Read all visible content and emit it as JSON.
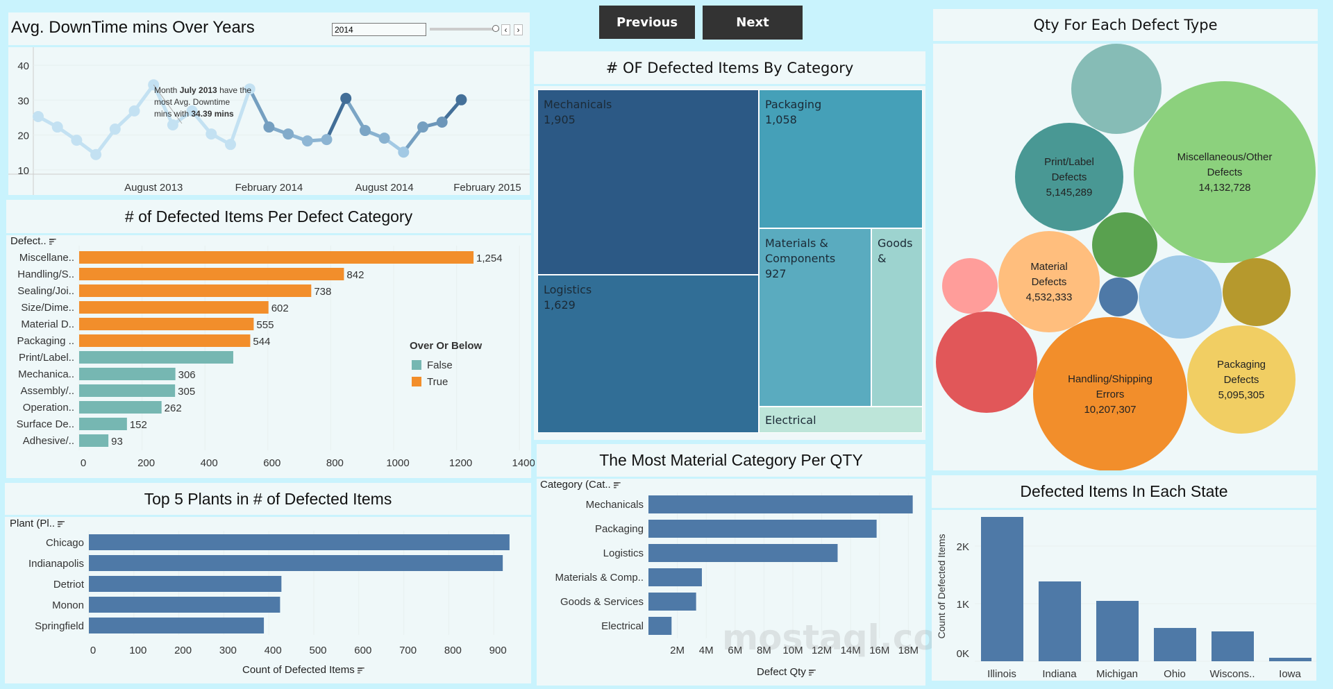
{
  "nav": {
    "previous_label": "Previous",
    "next_label": "Next"
  },
  "downtime": {
    "title": "Avg. DownTime mins Over Years",
    "filter_value": "2014",
    "y_ticks": [
      40,
      30,
      20,
      10
    ],
    "x_ticks": [
      "August 2013",
      "February 2014",
      "August 2014",
      "February 2015"
    ],
    "annotation": {
      "pre": "Month ",
      "month": "July 2013",
      "mid": " have the most Avg. Downtime mins with ",
      "value": "34.39 mins"
    },
    "selected_year": "2014",
    "chart_data": {
      "type": "line",
      "x": [
        "2013-01",
        "2013-02",
        "2013-03",
        "2013-04",
        "2013-05",
        "2013-06",
        "2013-07",
        "2013-08",
        "2013-09",
        "2013-10",
        "2013-11",
        "2013-12",
        "2014-01",
        "2014-02",
        "2014-03",
        "2014-04",
        "2014-05",
        "2014-06",
        "2014-07",
        "2014-08",
        "2014-09",
        "2014-10",
        "2014-11"
      ],
      "values": [
        25.3,
        22.3,
        18.5,
        14.4,
        21.7,
        26.9,
        34.39,
        22.9,
        26.9,
        20.3,
        17.3,
        33.2,
        22.3,
        20.3,
        18.3,
        18.7,
        30.5,
        21.3,
        19.1,
        15.1,
        22.3,
        23.7,
        30.1
      ],
      "ylim": [
        10,
        40
      ]
    }
  },
  "defect_category": {
    "title": "# of Defected Items Per Defect Category",
    "header": "Defect..",
    "legend_title": "Over Or Below",
    "legend": [
      {
        "label": "False",
        "color": "#76b7b2"
      },
      {
        "label": "True",
        "color": "#f28e2b"
      }
    ],
    "x_ticks": [
      0,
      200,
      400,
      600,
      800,
      1000,
      1200,
      1400
    ],
    "chart_data": {
      "type": "bar",
      "categories": [
        "Miscellane..",
        "Handling/S..",
        "Sealing/Joi..",
        "Size/Dime..",
        "Material D..",
        "Packaging ..",
        "Print/Label..",
        "Mechanica..",
        "Assembly/..",
        "Operation..",
        "Surface De..",
        "Adhesive/.."
      ],
      "values": [
        1254,
        842,
        738,
        602,
        555,
        544,
        490,
        306,
        305,
        262,
        152,
        93
      ],
      "labels": [
        "1,254",
        "842",
        "738",
        "602",
        "555",
        "544",
        "",
        "306",
        "305",
        "262",
        "152",
        "93"
      ],
      "over": [
        true,
        true,
        true,
        true,
        true,
        true,
        false,
        false,
        false,
        false,
        false,
        false
      ],
      "xlim": [
        0,
        1400
      ]
    }
  },
  "plants": {
    "title": "Top 5 Plants in # of Defected Items",
    "header": "Plant (Pl..",
    "x_title": "Count of Defected Items",
    "x_ticks": [
      0,
      100,
      200,
      300,
      400,
      500,
      600,
      700,
      800,
      900
    ],
    "color": "#4e79a7",
    "chart_data": {
      "type": "bar",
      "categories": [
        "Chicago",
        "Indianapolis",
        "Detriot",
        "Monon",
        "Springfield"
      ],
      "values": [
        935,
        920,
        428,
        425,
        389
      ],
      "xlim": [
        0,
        950
      ]
    }
  },
  "treemap": {
    "title": "# OF Defected Items By Category",
    "chart_data": {
      "type": "treemap",
      "cells": [
        {
          "label": "Mechanicals",
          "value": "1,905",
          "color": "#2c5985"
        },
        {
          "label": "Logistics",
          "value": "1,629",
          "color": "#316e96"
        },
        {
          "label": "Packaging",
          "value": "1,058",
          "color": "#45a0b8"
        },
        {
          "label": "Materials & Components",
          "value": "927",
          "color": "#5aabbf"
        },
        {
          "label": "Goods &",
          "value": "",
          "color": "#9dd3cf"
        },
        {
          "label": "Electrical",
          "value": "",
          "color": "#bde5d9"
        }
      ]
    }
  },
  "material_qty": {
    "title": "The Most Material Category Per QTY",
    "header": "Category (Cat..",
    "x_title": "Defect Qty",
    "x_ticks": [
      "2M",
      "4M",
      "6M",
      "8M",
      "10M",
      "12M",
      "14M",
      "16M",
      "18M"
    ],
    "color": "#4e79a7",
    "chart_data": {
      "type": "bar",
      "categories": [
        "Mechanicals",
        "Packaging",
        "Logistics",
        "Materials & Comp..",
        "Goods & Services",
        "Electrical"
      ],
      "values": [
        18300000,
        15800000,
        13100000,
        3700000,
        3300000,
        1600000
      ],
      "xlim": [
        0,
        18500000
      ]
    }
  },
  "bubbles": {
    "title": "Qty For Each Defect Type",
    "chart_data": {
      "type": "bubble",
      "items": [
        {
          "label": "",
          "value": "",
          "color": "#86bcb6"
        },
        {
          "label": "Miscellaneous/Other Defects",
          "value": "14,132,728",
          "color": "#8cd17d"
        },
        {
          "label": "Print/Label Defects",
          "value": "5,145,289",
          "color": "#499894"
        },
        {
          "label": "",
          "value": "",
          "color": "#59a14f"
        },
        {
          "label": "Material Defects",
          "value": "4,532,333",
          "color": "#ffbe7d"
        },
        {
          "label": "",
          "value": "",
          "color": "#ff9d9a"
        },
        {
          "label": "",
          "value": "",
          "color": "#4e79a7"
        },
        {
          "label": "",
          "value": "",
          "color": "#a0cbe8"
        },
        {
          "label": "",
          "value": "",
          "color": "#b6992d"
        },
        {
          "label": "",
          "value": "",
          "color": "#e15759"
        },
        {
          "label": "Handling/Shipping Errors",
          "value": "10,207,307",
          "color": "#f28e2b"
        },
        {
          "label": "Packaging Defects",
          "value": "5,095,305",
          "color": "#f1ce63"
        }
      ]
    }
  },
  "states": {
    "title": "Defected Items In Each State",
    "y_title": "Count of Defected Items",
    "y_ticks": [
      "2K",
      "1K",
      "0K"
    ],
    "color": "#4e79a7",
    "chart_data": {
      "type": "bar",
      "categories": [
        "Illinois",
        "Indiana",
        "Michigan",
        "Ohio",
        "Wiscons..",
        "Iowa"
      ],
      "values": [
        2506,
        1386,
        1048,
        578,
        518,
        60
      ],
      "ylim": [
        0,
        2700
      ]
    }
  },
  "watermark": "mostaql.com"
}
